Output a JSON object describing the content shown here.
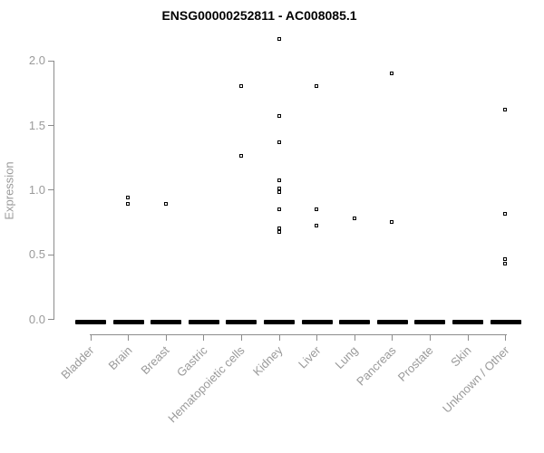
{
  "chart_data": {
    "type": "scatter",
    "title": "ENSG00000252811 - AC008085.1",
    "ylabel": "Expression",
    "xlabel": "",
    "ylim": [
      0.0,
      2.2
    ],
    "ytick_labels": [
      "0.0",
      "0.5",
      "1.0",
      "1.5",
      "2.0"
    ],
    "grid": false,
    "legend": null,
    "marker": "open-square",
    "categories": [
      "Bladder",
      "Brain",
      "Breast",
      "Gastric",
      "Hematopoietic cells",
      "Kidney",
      "Liver",
      "Lung",
      "Pancreas",
      "Prostate",
      "Skin",
      "Unknown / Other"
    ],
    "nonzero_values": [
      [],
      [
        0.94,
        0.89
      ],
      [
        0.89
      ],
      [],
      [
        1.8,
        1.26
      ],
      [
        2.17,
        1.57,
        1.37,
        1.07,
        1.01,
        0.98,
        0.85,
        0.7,
        0.67
      ],
      [
        1.8,
        0.85,
        0.72
      ],
      [
        0.78
      ],
      [
        1.9,
        0.75
      ],
      [],
      [],
      [
        1.62,
        0.81,
        0.46,
        0.43
      ]
    ],
    "zero_cluster_every_category": true,
    "zero_value": 0.0,
    "colors": {
      "marker_stroke": "#000000",
      "marker_fill": "#ffffff",
      "zero_dash": "#000000",
      "axis": "#8c8c8c",
      "axis_text": "#9a9a9a",
      "title_text": "#000000"
    }
  }
}
